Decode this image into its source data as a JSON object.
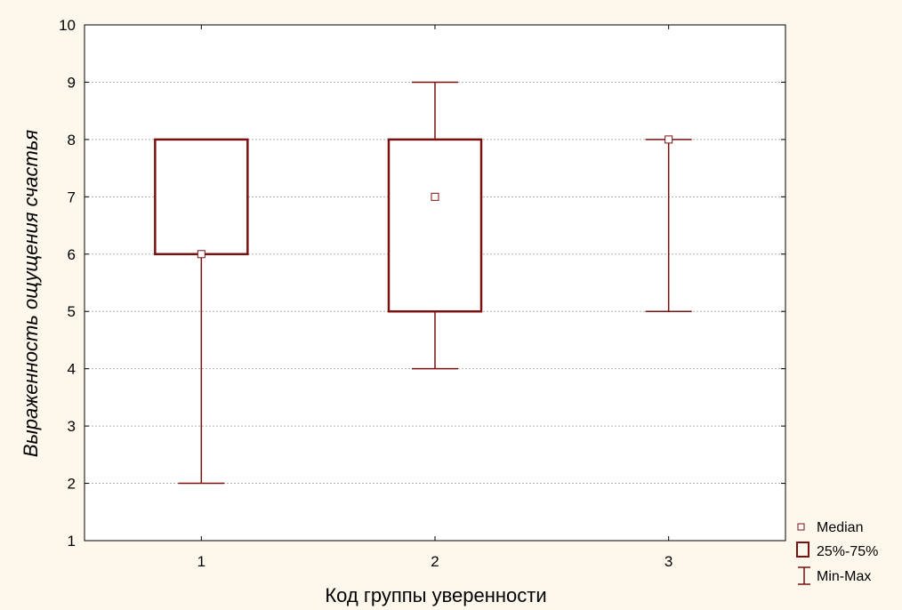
{
  "chart_data": {
    "type": "boxplot",
    "xlabel": "Код группы уверенности",
    "ylabel": "Выраженность ощущения счастья",
    "categories": [
      "1",
      "2",
      "3"
    ],
    "ylim": [
      1,
      10
    ],
    "yticks": [
      1,
      2,
      3,
      4,
      5,
      6,
      7,
      8,
      9,
      10
    ],
    "grid": true,
    "legend_position": "bottom-right",
    "color": "#7b1010",
    "boxes": [
      {
        "category": "1",
        "median": 6,
        "q1": 6,
        "q3": 8,
        "min": 2,
        "max": 8
      },
      {
        "category": "2",
        "median": 7,
        "q1": 5,
        "q3": 8,
        "min": 4,
        "max": 9
      },
      {
        "category": "3",
        "median": 8,
        "q1": 8,
        "q3": 8,
        "min": 5,
        "max": 8
      }
    ],
    "legend": {
      "median": "Median",
      "box": "25%-75%",
      "range": "Min-Max"
    }
  }
}
